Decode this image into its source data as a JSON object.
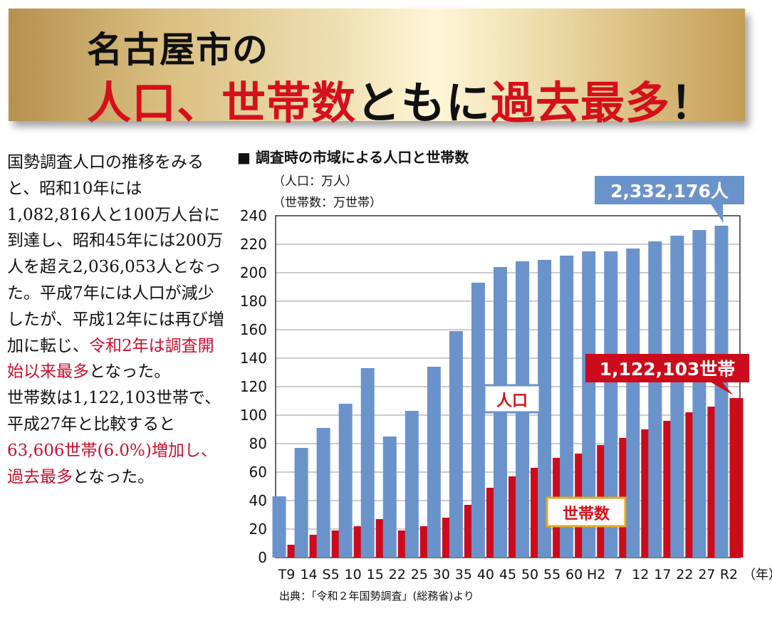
{
  "header": {
    "line1": "名古屋市の",
    "line2_part1": "人口、世帯数",
    "line2_part2": "ともに",
    "line2_part3": "過去最多",
    "line2_part4": "！"
  },
  "body_text": {
    "p1_a": "国勢調査人口の推移をみると、昭和10年には1,082,816人と100万人台に到達し、昭和45年には200万人を超え2,036,053人となった。平成7年には人口が減少したが、平成12年には再び増加に転じ、",
    "p1_b": "令和2年は調査開始以来最多",
    "p1_c": "となった。",
    "p2_a": "世帯数は1,122,103世帯で、平成27年と比較すると",
    "p2_b": "63,606世帯(6.0%)増加し、過去最多",
    "p2_c": "となった。"
  },
  "chart_title": "■ 調査時の市域による人口と世帯数",
  "unit_population": "（人口：万人）",
  "unit_households": "（世帯数：万世帯）",
  "x_unit": "（年）",
  "source": "出典：「令和２年国勢調査」(総務省)より",
  "callouts": {
    "population_total": "2,332,176人",
    "households_total": "1,122,103世帯",
    "population_label": "人口",
    "households_label": "世帯数"
  },
  "colors": {
    "population": "#6b93cb",
    "households": "#cc0c1c",
    "accent_red": "#d4101a"
  },
  "chart_data": {
    "type": "bar",
    "categories": [
      "T9",
      "14",
      "S5",
      "10",
      "15",
      "22",
      "25",
      "30",
      "35",
      "40",
      "45",
      "50",
      "55",
      "60",
      "H2",
      "7",
      "12",
      "17",
      "22",
      "27",
      "R2"
    ],
    "ylim": [
      0,
      240
    ],
    "yticks": [
      0,
      20,
      40,
      60,
      80,
      100,
      120,
      140,
      160,
      180,
      200,
      220,
      240
    ],
    "series": [
      {
        "name": "人口",
        "values": [
          43,
          77,
          91,
          108,
          133,
          85,
          103,
          134,
          159,
          193,
          204,
          208,
          209,
          212,
          215,
          215,
          217,
          222,
          226,
          230,
          233
        ]
      },
      {
        "name": "世帯数",
        "values": [
          9,
          16,
          19,
          22,
          27,
          19,
          22,
          28,
          37,
          49,
          57,
          63,
          70,
          73,
          79,
          84,
          90,
          96,
          102,
          106,
          112
        ]
      }
    ],
    "grid": "horizontal"
  }
}
